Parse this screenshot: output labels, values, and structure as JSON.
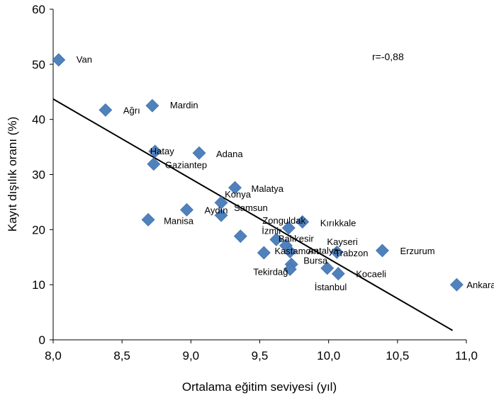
{
  "chart_data": {
    "type": "scatter",
    "title": "",
    "xlabel": "Ortalama  eğitim seviyesi (yıl)",
    "ylabel": "Kayıt dışılık oranı (%)",
    "xlim": [
      8.0,
      11.0
    ],
    "ylim": [
      0,
      60
    ],
    "xticks": [
      "8,0",
      "8,5",
      "9,0",
      "9,5",
      "10,0",
      "10,5",
      "11,0"
    ],
    "yticks": [
      "0",
      "10",
      "20",
      "30",
      "40",
      "50",
      "60"
    ],
    "grid": false,
    "legend": "none",
    "marker_color": "#4F81BD",
    "trendline": {
      "type": "linear",
      "x": [
        8.0,
        10.9
      ],
      "y": [
        43.7,
        1.7
      ]
    },
    "annotation": "r=-0,88",
    "points": [
      {
        "label": "Van",
        "x": 8.04,
        "y": 50.8
      },
      {
        "label": "Ağrı",
        "x": 8.38,
        "y": 41.7
      },
      {
        "label": "Mardin",
        "x": 8.72,
        "y": 42.5
      },
      {
        "label": "Hatay",
        "x": 8.74,
        "y": 34.2
      },
      {
        "label": "Gaziantep",
        "x": 8.73,
        "y": 31.9
      },
      {
        "label": "Adana",
        "x": 9.06,
        "y": 33.9
      },
      {
        "label": "Malatya",
        "x": 9.32,
        "y": 27.6
      },
      {
        "label": "Konya",
        "x": 9.22,
        "y": 24.9
      },
      {
        "label": "Aydın",
        "x": 8.97,
        "y": 23.6
      },
      {
        "label": "Manisa",
        "x": 8.69,
        "y": 21.8
      },
      {
        "label": "Samsun",
        "x": 9.22,
        "y": 22.6
      },
      {
        "label": "Zonguldak",
        "x": 9.71,
        "y": 20.3
      },
      {
        "label": "Kırıkkale",
        "x": 9.81,
        "y": 21.4
      },
      {
        "label": "Balıkesir",
        "x": 9.62,
        "y": 18.2
      },
      {
        "label": "İzmir",
        "x": 9.36,
        "y": 18.8
      },
      {
        "label": "Kayseri",
        "x": 9.69,
        "y": 17.1
      },
      {
        "label": "Antalya",
        "x": 9.72,
        "y": 16.0
      },
      {
        "label": "Kastamonu",
        "x": 9.53,
        "y": 15.8
      },
      {
        "label": "Trabzon",
        "x": 10.06,
        "y": 15.9
      },
      {
        "label": "Erzurum",
        "x": 10.39,
        "y": 16.2
      },
      {
        "label": "Bursa",
        "x": 9.73,
        "y": 13.7
      },
      {
        "label": "Tekirdağ",
        "x": 9.72,
        "y": 12.8
      },
      {
        "label": "Kocaeli",
        "x": 10.07,
        "y": 12.0
      },
      {
        "label": "İstanbul",
        "x": 9.99,
        "y": 13.0
      },
      {
        "label": "Ankara",
        "x": 10.93,
        "y": 10.0
      }
    ]
  }
}
